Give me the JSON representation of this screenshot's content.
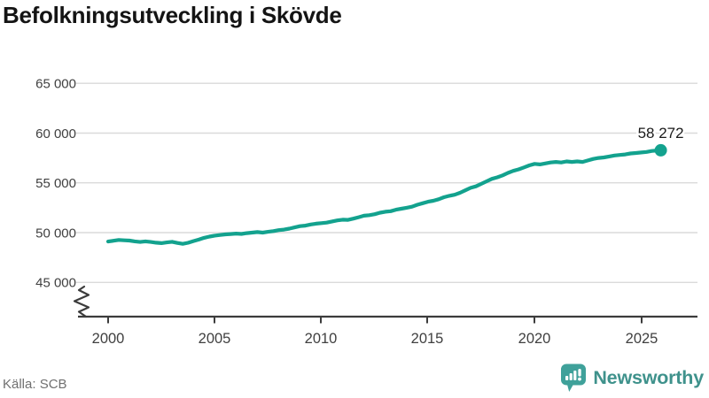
{
  "title": "Befolkningsutveckling i Skövde",
  "source": "Källa: SCB",
  "branding": {
    "name": "Newsworthy",
    "color": "#3F928C",
    "icon_color": "#3FA19A"
  },
  "chart_data": {
    "type": "line",
    "title": "Befolkningsutveckling i Skövde",
    "xlabel": "",
    "ylabel": "",
    "x_tick_labels": [
      "2000",
      "2005",
      "2010",
      "2015",
      "2020",
      "2025"
    ],
    "y_tick_labels": [
      "65 000",
      "60 000",
      "55 000",
      "50 000",
      "45 000"
    ],
    "y_ticks": [
      65000,
      60000,
      55000,
      50000,
      45000
    ],
    "ylim": [
      45000,
      65000
    ],
    "xlim": [
      2000,
      2026
    ],
    "axis_break_bottom_left": true,
    "grid": "horizontal",
    "legend": "none",
    "line_color": "#13A28E",
    "end_label": "58 272",
    "end_value": 58272,
    "points": [
      [
        2000,
        49100
      ],
      [
        2000.25,
        49180
      ],
      [
        2000.5,
        49260
      ],
      [
        2000.75,
        49230
      ],
      [
        2001,
        49200
      ],
      [
        2001.25,
        49120
      ],
      [
        2001.5,
        49060
      ],
      [
        2001.75,
        49120
      ],
      [
        2002,
        49060
      ],
      [
        2002.25,
        48990
      ],
      [
        2002.5,
        48940
      ],
      [
        2002.75,
        49010
      ],
      [
        2003,
        49080
      ],
      [
        2003.25,
        48960
      ],
      [
        2003.5,
        48870
      ],
      [
        2003.75,
        48980
      ],
      [
        2004,
        49150
      ],
      [
        2004.25,
        49300
      ],
      [
        2004.5,
        49480
      ],
      [
        2004.75,
        49600
      ],
      [
        2005,
        49700
      ],
      [
        2005.25,
        49760
      ],
      [
        2005.5,
        49820
      ],
      [
        2005.75,
        49860
      ],
      [
        2006,
        49900
      ],
      [
        2006.25,
        49870
      ],
      [
        2006.5,
        49950
      ],
      [
        2006.75,
        50000
      ],
      [
        2007,
        50050
      ],
      [
        2007.25,
        50000
      ],
      [
        2007.5,
        50080
      ],
      [
        2007.75,
        50150
      ],
      [
        2008,
        50250
      ],
      [
        2008.25,
        50300
      ],
      [
        2008.5,
        50400
      ],
      [
        2008.75,
        50520
      ],
      [
        2009,
        50650
      ],
      [
        2009.25,
        50700
      ],
      [
        2009.5,
        50820
      ],
      [
        2009.75,
        50900
      ],
      [
        2010,
        50950
      ],
      [
        2010.25,
        51000
      ],
      [
        2010.5,
        51120
      ],
      [
        2010.75,
        51230
      ],
      [
        2011,
        51300
      ],
      [
        2011.25,
        51280
      ],
      [
        2011.5,
        51400
      ],
      [
        2011.75,
        51550
      ],
      [
        2012,
        51700
      ],
      [
        2012.25,
        51750
      ],
      [
        2012.5,
        51850
      ],
      [
        2012.75,
        52000
      ],
      [
        2013,
        52100
      ],
      [
        2013.25,
        52150
      ],
      [
        2013.5,
        52300
      ],
      [
        2013.75,
        52400
      ],
      [
        2014,
        52500
      ],
      [
        2014.25,
        52600
      ],
      [
        2014.5,
        52800
      ],
      [
        2014.75,
        52950
      ],
      [
        2015,
        53100
      ],
      [
        2015.25,
        53200
      ],
      [
        2015.5,
        53350
      ],
      [
        2015.75,
        53550
      ],
      [
        2016,
        53700
      ],
      [
        2016.25,
        53800
      ],
      [
        2016.5,
        54000
      ],
      [
        2016.75,
        54250
      ],
      [
        2017,
        54500
      ],
      [
        2017.25,
        54650
      ],
      [
        2017.5,
        54900
      ],
      [
        2017.75,
        55150
      ],
      [
        2018,
        55400
      ],
      [
        2018.25,
        55550
      ],
      [
        2018.5,
        55750
      ],
      [
        2018.75,
        56000
      ],
      [
        2019,
        56200
      ],
      [
        2019.25,
        56350
      ],
      [
        2019.5,
        56550
      ],
      [
        2019.75,
        56750
      ],
      [
        2020,
        56900
      ],
      [
        2020.25,
        56850
      ],
      [
        2020.5,
        56950
      ],
      [
        2020.75,
        57050
      ],
      [
        2021,
        57100
      ],
      [
        2021.25,
        57050
      ],
      [
        2021.5,
        57150
      ],
      [
        2021.75,
        57100
      ],
      [
        2022,
        57150
      ],
      [
        2022.25,
        57100
      ],
      [
        2022.5,
        57250
      ],
      [
        2022.75,
        57400
      ],
      [
        2023,
        57500
      ],
      [
        2023.25,
        57550
      ],
      [
        2023.5,
        57650
      ],
      [
        2023.75,
        57750
      ],
      [
        2024,
        57800
      ],
      [
        2024.25,
        57850
      ],
      [
        2024.5,
        57950
      ],
      [
        2024.75,
        58000
      ],
      [
        2025,
        58050
      ],
      [
        2025.25,
        58100
      ],
      [
        2025.5,
        58200
      ],
      [
        2025.92,
        58272
      ]
    ]
  }
}
